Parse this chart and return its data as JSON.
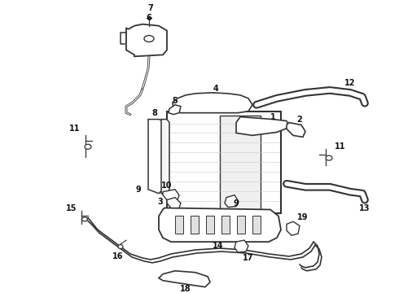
{
  "background_color": "#ffffff",
  "figsize": [
    4.9,
    3.6
  ],
  "dpi": 100,
  "ec": "#333333",
  "lw": 1.0
}
